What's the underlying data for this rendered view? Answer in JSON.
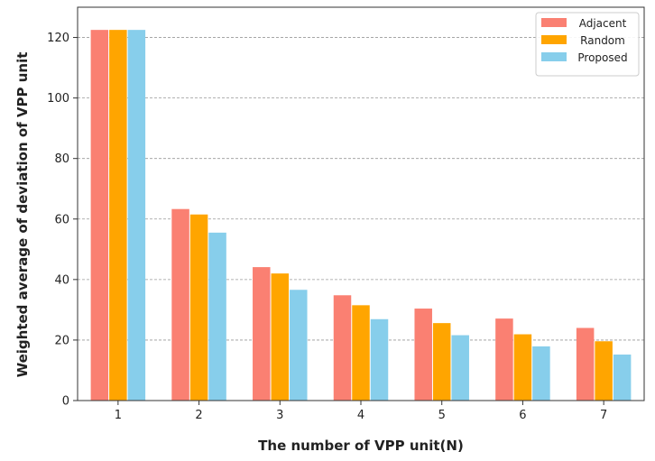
{
  "chart_data": {
    "type": "bar",
    "title": "",
    "xlabel": "The number of VPP unit(N)",
    "ylabel": "Weighted average of deviation of VPP unit",
    "categories": [
      "1",
      "2",
      "3",
      "4",
      "5",
      "6",
      "7"
    ],
    "series": [
      {
        "name": "Adjacent",
        "color": "#fa8072",
        "values": [
          122.5,
          63.3,
          44.1,
          34.8,
          30.4,
          27.1,
          24.0
        ]
      },
      {
        "name": "Random",
        "color": "#ffa500",
        "values": [
          122.5,
          61.5,
          42.0,
          31.5,
          25.6,
          21.9,
          19.6
        ]
      },
      {
        "name": "Proposed",
        "color": "#87ceeb",
        "values": [
          122.5,
          55.5,
          36.6,
          26.9,
          21.6,
          17.9,
          15.2
        ]
      }
    ],
    "ylim": [
      0,
      130
    ],
    "yticks": [
      0,
      20,
      40,
      60,
      80,
      100,
      120
    ],
    "grid": "horizontal-dashed",
    "legend_position": "top-right"
  }
}
